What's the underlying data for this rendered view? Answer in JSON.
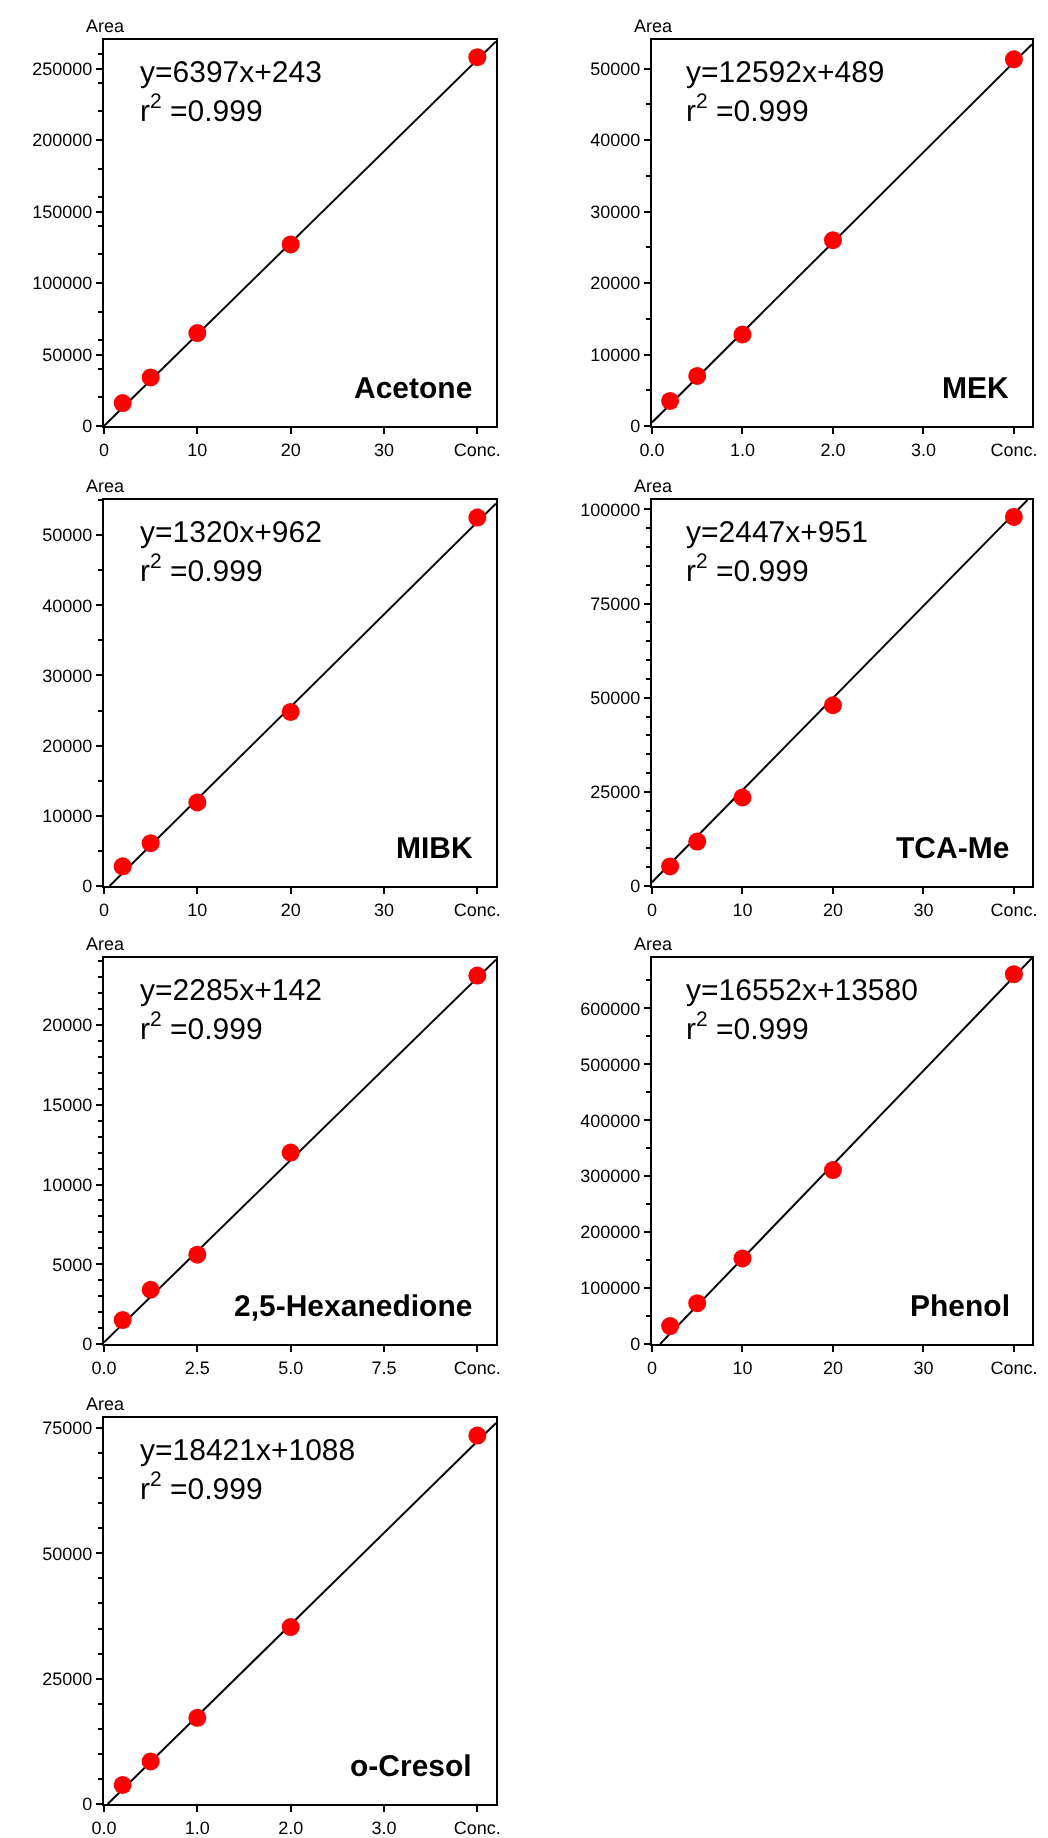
{
  "chart_data": [
    {
      "type": "scatter",
      "title": "Acetone",
      "ylabel": "Area",
      "annotations": [
        "y=6397x+243",
        "r$^{2}$ =0.999"
      ],
      "marker": "circle",
      "xlim": [
        0,
        42
      ],
      "xticks": [
        0,
        10,
        20,
        30,
        {
          "value": 40,
          "label": "Conc."
        }
      ],
      "ylim": [
        0,
        270000
      ],
      "yticks": [
        0,
        50000,
        100000,
        150000,
        200000,
        250000
      ],
      "series": [
        {
          "type": "scatter",
          "color": "#ff0000",
          "x": [
            2,
            5,
            10,
            20,
            40
          ],
          "values": [
            16000,
            34000,
            65000,
            127000,
            258000
          ]
        },
        {
          "type": "line",
          "marker": "none",
          "color": "#000000",
          "x": [
            0,
            42
          ],
          "values": [
            0,
            269000
          ]
        }
      ]
    },
    {
      "type": "scatter",
      "title": "MEK",
      "ylabel": "Area",
      "annotations": [
        "y=12592x+489",
        "r$^{2}$ =0.999"
      ],
      "marker": "circle",
      "xlim": [
        0,
        4.2
      ],
      "xticks": [
        {
          "value": 0,
          "label": "0.0"
        },
        {
          "value": 1,
          "label": "1.0"
        },
        {
          "value": 2,
          "label": "2.0"
        },
        {
          "value": 3,
          "label": "3.0"
        },
        {
          "value": 4,
          "label": "Conc."
        }
      ],
      "ylim": [
        0,
        54000
      ],
      "yticks": [
        0,
        10000,
        20000,
        30000,
        40000,
        50000
      ],
      "series": [
        {
          "type": "scatter",
          "color": "#ff0000",
          "x": [
            0.2,
            0.5,
            1,
            2,
            4
          ],
          "values": [
            3500,
            7000,
            12800,
            26000,
            51300
          ]
        },
        {
          "type": "line",
          "marker": "none",
          "color": "#000000",
          "x": [
            0,
            4.2
          ],
          "values": [
            500,
            53400
          ]
        }
      ]
    },
    {
      "type": "scatter",
      "title": "MIBK",
      "ylabel": "Area",
      "annotations": [
        "y=1320x+962",
        "r$^{2}$ =0.999"
      ],
      "marker": "circle",
      "xlim": [
        0,
        42
      ],
      "xticks": [
        0,
        10,
        20,
        30,
        {
          "value": 40,
          "label": "Conc."
        }
      ],
      "ylim": [
        0,
        55000
      ],
      "yticks": [
        0,
        10000,
        20000,
        30000,
        40000,
        50000
      ],
      "series": [
        {
          "type": "scatter",
          "color": "#ff0000",
          "x": [
            2,
            5,
            10,
            20,
            40
          ],
          "values": [
            2800,
            6100,
            11900,
            24800,
            52500
          ]
        },
        {
          "type": "line",
          "marker": "none",
          "color": "#000000",
          "x": [
            0.6,
            42
          ],
          "values": [
            0,
            54500
          ]
        }
      ]
    },
    {
      "type": "scatter",
      "title": "TCA-Me",
      "ylabel": "Area",
      "annotations": [
        "y=2447x+951",
        "r$^{2}$ =0.999"
      ],
      "marker": "circle",
      "xlim": [
        0,
        42
      ],
      "xticks": [
        0,
        10,
        20,
        30,
        {
          "value": 40,
          "label": "Conc."
        }
      ],
      "ylim": [
        0,
        102500
      ],
      "yticks": [
        0,
        25000,
        50000,
        75000,
        100000
      ],
      "series": [
        {
          "type": "scatter",
          "color": "#ff0000",
          "x": [
            2,
            5,
            10,
            20,
            40
          ],
          "values": [
            5200,
            11800,
            23500,
            48000,
            98000
          ]
        },
        {
          "type": "line",
          "marker": "none",
          "color": "#000000",
          "x": [
            0,
            41.5
          ],
          "values": [
            1000,
            102500
          ]
        }
      ]
    },
    {
      "type": "scatter",
      "title": "2,5-Hexanedione",
      "ylabel": "Area",
      "annotations": [
        "y=2285x+142",
        "r$^{2}$ =0.999"
      ],
      "marker": "circle",
      "xlim": [
        0,
        10.5
      ],
      "xticks": [
        {
          "value": 0,
          "label": "0.0"
        },
        {
          "value": 2.5,
          "label": "2.5"
        },
        {
          "value": 5,
          "label": "5.0"
        },
        {
          "value": 7.5,
          "label": "7.5"
        },
        {
          "value": 10,
          "label": "Conc."
        }
      ],
      "ylim": [
        0,
        24200
      ],
      "yticks": [
        0,
        5000,
        10000,
        15000,
        20000
      ],
      "series": [
        {
          "type": "scatter",
          "color": "#ff0000",
          "x": [
            0.5,
            1.25,
            2.5,
            5,
            10
          ],
          "values": [
            1500,
            3400,
            5600,
            12000,
            23100
          ]
        },
        {
          "type": "line",
          "marker": "none",
          "color": "#000000",
          "x": [
            0,
            10.5
          ],
          "values": [
            100,
            24100
          ]
        }
      ]
    },
    {
      "type": "scatter",
      "title": "Phenol",
      "ylabel": "Area",
      "annotations": [
        "y=16552x+13580",
        "r$^{2}$ =0.999"
      ],
      "marker": "circle",
      "xlim": [
        0,
        42
      ],
      "xticks": [
        0,
        10,
        20,
        30,
        {
          "value": 40,
          "label": "Conc."
        }
      ],
      "ylim": [
        0,
        690000
      ],
      "yticks": [
        0,
        100000,
        200000,
        300000,
        400000,
        500000,
        600000
      ],
      "series": [
        {
          "type": "scatter",
          "color": "#ff0000",
          "x": [
            2,
            5,
            10,
            20,
            40
          ],
          "values": [
            32000,
            73000,
            153000,
            311000,
            661000
          ]
        },
        {
          "type": "line",
          "marker": "none",
          "color": "#000000",
          "x": [
            0.9,
            42
          ],
          "values": [
            0,
            690000
          ]
        }
      ]
    },
    {
      "type": "scatter",
      "title": "o-Cresol",
      "ylabel": "Area",
      "annotations": [
        "y=18421x+1088",
        "r$^{2}$ =0.999"
      ],
      "marker": "circle",
      "xlim": [
        0,
        4.2
      ],
      "xticks": [
        {
          "value": 0,
          "label": "0.0"
        },
        {
          "value": 1,
          "label": "1.0"
        },
        {
          "value": 2,
          "label": "2.0"
        },
        {
          "value": 3,
          "label": "3.0"
        },
        {
          "value": 4,
          "label": "Conc."
        }
      ],
      "ylim": [
        0,
        77000
      ],
      "yticks": [
        0,
        25000,
        50000,
        75000
      ],
      "series": [
        {
          "type": "scatter",
          "color": "#ff0000",
          "x": [
            0.2,
            0.5,
            1,
            2,
            4
          ],
          "values": [
            3800,
            8500,
            17200,
            35300,
            73500
          ]
        },
        {
          "type": "line",
          "marker": "none",
          "color": "#000000",
          "x": [
            0.04,
            4.2
          ],
          "values": [
            0,
            76000
          ]
        }
      ]
    }
  ]
}
